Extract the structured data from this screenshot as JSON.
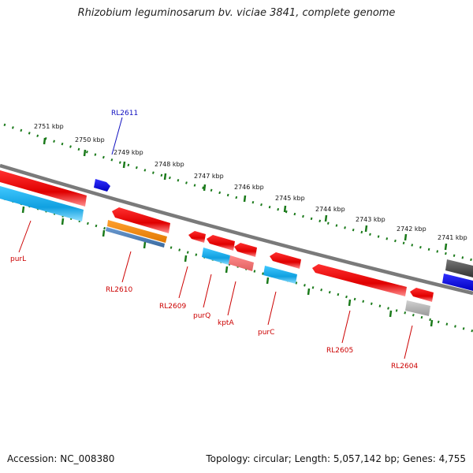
{
  "title": "Rhizobium leguminosarum bv. viciae 3841, complete genome",
  "footer": {
    "accession": "Accession: NC_008380",
    "summary": "Topology: circular; Length: 5,057,142 bp; Genes: 4,755"
  },
  "scale": {
    "ticks": [
      "2751 kbp",
      "2750 kbp",
      "2749 kbp",
      "2748 kbp",
      "2747 kbp",
      "2746 kbp",
      "2745 kbp",
      "2744 kbp",
      "2743 kbp",
      "2742 kbp",
      "2741 kbp"
    ]
  },
  "genes": [
    {
      "label": "RL2611",
      "color": "#1010c0"
    },
    {
      "label": "purL",
      "color": "#cc0000"
    },
    {
      "label": "RL2610",
      "color": "#cc0000"
    },
    {
      "label": "RL2609",
      "color": "#cc0000"
    },
    {
      "label": "purQ",
      "color": "#cc0000"
    },
    {
      "label": "kptA",
      "color": "#cc0000"
    },
    {
      "label": "purC",
      "color": "#cc0000"
    },
    {
      "label": "RL2605",
      "color": "#cc0000"
    },
    {
      "label": "RL2604",
      "color": "#cc0000"
    }
  ],
  "colors": {
    "cds": "#ee1111",
    "gene_blue": "#1ab0e8",
    "orange": "#f08a10",
    "steel": "#4a7bb0",
    "backbone": "#7a7a7a",
    "tick": "#1a7a1a",
    "dark_blue": "#1818e0",
    "dark_gray": "#555555",
    "light_gray": "#b0b0b0",
    "pink": "#ee7777"
  }
}
